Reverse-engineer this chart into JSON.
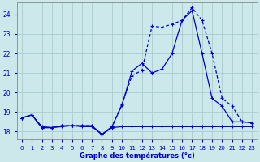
{
  "bg_color": "#cce8ea",
  "grid_color": "#aacccc",
  "line_color": "#0000cc",
  "xlabel": "Graphe des températures (°c)",
  "xlim": [
    -0.5,
    23.5
  ],
  "ylim": [
    17.6,
    24.6
  ],
  "yticks": [
    18,
    19,
    20,
    21,
    22,
    23,
    24
  ],
  "xticks": [
    0,
    1,
    2,
    3,
    4,
    5,
    6,
    7,
    8,
    9,
    10,
    11,
    12,
    13,
    14,
    15,
    16,
    17,
    18,
    19,
    20,
    21,
    22,
    23
  ],
  "series1_x": [
    0,
    1,
    2,
    3,
    4,
    5,
    6,
    7,
    8,
    9,
    10,
    11,
    12,
    13,
    14,
    15,
    16,
    17,
    18,
    19,
    20,
    21,
    22,
    23
  ],
  "series1_y": [
    18.7,
    18.85,
    18.25,
    18.2,
    18.25,
    18.3,
    18.25,
    18.25,
    17.85,
    18.2,
    18.25,
    18.25,
    18.25,
    18.25,
    18.25,
    18.25,
    18.25,
    18.25,
    18.25,
    18.25,
    18.25,
    18.25,
    18.25,
    18.25
  ],
  "series2_x": [
    0,
    1,
    2,
    3,
    4,
    5,
    6,
    7,
    8,
    9,
    10,
    11,
    12,
    13,
    14,
    15,
    16,
    17,
    18,
    19,
    20,
    21,
    22,
    23
  ],
  "series2_y": [
    18.7,
    18.85,
    18.2,
    18.2,
    18.3,
    18.3,
    18.3,
    18.3,
    17.85,
    18.25,
    19.4,
    20.85,
    21.15,
    23.4,
    23.35,
    23.5,
    23.7,
    24.35,
    23.7,
    22.0,
    19.7,
    19.3,
    18.5,
    18.45
  ],
  "series3_x": [
    0,
    1,
    2,
    3,
    4,
    5,
    6,
    7,
    8,
    9,
    10,
    11,
    12,
    13,
    14,
    15,
    16,
    17,
    18,
    19,
    20,
    21,
    22,
    23
  ],
  "series3_y": [
    18.7,
    18.85,
    18.2,
    18.2,
    18.3,
    18.3,
    18.3,
    18.3,
    17.85,
    18.25,
    19.35,
    21.1,
    21.5,
    21.0,
    21.2,
    22.0,
    23.7,
    24.2,
    22.0,
    19.7,
    19.3,
    18.5,
    18.5,
    18.45
  ]
}
